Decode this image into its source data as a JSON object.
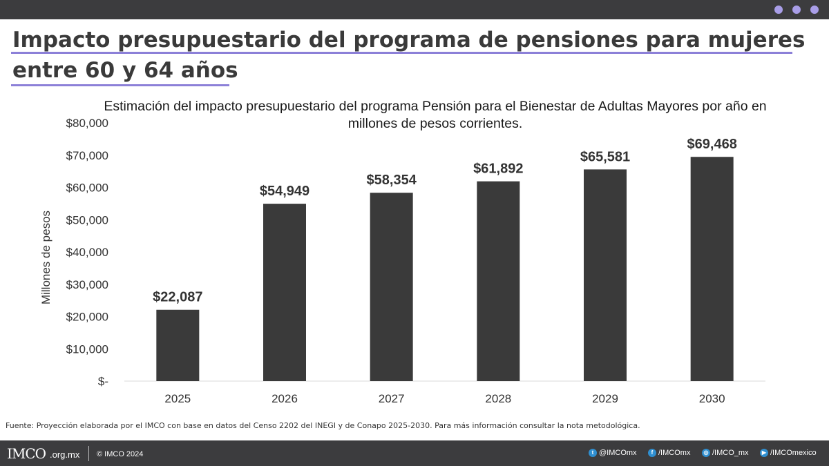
{
  "header": {
    "title": "Impacto presupuestario del programa de pensiones para mujeres entre 60 y 64 años"
  },
  "chart_data": {
    "type": "bar",
    "title": "Estimación del impacto presupuestario del programa Pensión para el Bienestar de Adultas Mayores por año en millones de pesos corrientes.",
    "xlabel": "",
    "ylabel": "Millones de pesos",
    "categories": [
      "2025",
      "2026",
      "2027",
      "2028",
      "2029",
      "2030"
    ],
    "values": [
      22087,
      54949,
      58354,
      61892,
      65581,
      69468
    ],
    "data_labels": [
      "$22,087",
      "$54,949",
      "$58,354",
      "$61,892",
      "$65,581",
      "$69,468"
    ],
    "y_ticks": [
      0,
      10000,
      20000,
      30000,
      40000,
      50000,
      60000,
      70000,
      80000
    ],
    "y_tick_labels": [
      "$-",
      "$10,000",
      "$20,000",
      "$30,000",
      "$40,000",
      "$50,000",
      "$60,000",
      "$70,000",
      "$80,000"
    ],
    "ylim": [
      0,
      80000
    ],
    "grid": false,
    "legend": "none",
    "bar_color": "#3a3a3a"
  },
  "source": "Fuente: Proyección elaborada por el IMCO con base en datos del Censo 2202 del INEGI y de Conapo 2025-2030. Para más información consultar la nota metodológica.",
  "footer": {
    "logo_text": "IMCO",
    "domain": ".org.mx",
    "copyright": "© IMCO 2024",
    "social": [
      {
        "icon": "twitter-icon",
        "glyph": "t",
        "handle": "@IMCOmx"
      },
      {
        "icon": "facebook-icon",
        "glyph": "f",
        "handle": "/IMCOmx"
      },
      {
        "icon": "instagram-icon",
        "glyph": "◎",
        "handle": "/IMCO_mx"
      },
      {
        "icon": "youtube-icon",
        "glyph": "▶",
        "handle": "/IMCOmexico"
      }
    ]
  },
  "colors": {
    "accent": "#8c80d8",
    "top_bar": "#3c3c3e",
    "dots": "#a99ee8"
  }
}
